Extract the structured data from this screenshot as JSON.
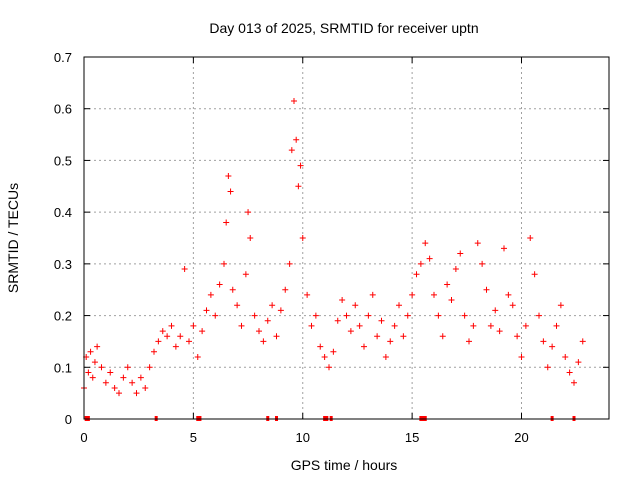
{
  "chart_data": {
    "type": "scatter",
    "title": "Day 013 of 2025, SRMTID for receiver uptn",
    "xlabel": "GPS time / hours",
    "ylabel": "SRMTID / TECUs",
    "xlim": [
      0,
      24
    ],
    "ylim": [
      0,
      0.7
    ],
    "xticks": [
      0,
      5,
      10,
      15,
      20
    ],
    "yticks": [
      0,
      0.1,
      0.2,
      0.3,
      0.4,
      0.5,
      0.6,
      0.7
    ],
    "grid": true,
    "marker": "+",
    "color": "#ff0000",
    "series": [
      {
        "name": "SRMTID",
        "points": [
          [
            0.0,
            0.06
          ],
          [
            0.1,
            0.12
          ],
          [
            0.2,
            0.09
          ],
          [
            0.3,
            0.13
          ],
          [
            0.4,
            0.08
          ],
          [
            0.5,
            0.11
          ],
          [
            0.6,
            0.14
          ],
          [
            0.8,
            0.1
          ],
          [
            1.0,
            0.07
          ],
          [
            1.2,
            0.09
          ],
          [
            1.4,
            0.06
          ],
          [
            1.6,
            0.05
          ],
          [
            1.8,
            0.08
          ],
          [
            2.0,
            0.1
          ],
          [
            2.2,
            0.07
          ],
          [
            2.4,
            0.05
          ],
          [
            2.6,
            0.08
          ],
          [
            2.8,
            0.06
          ],
          [
            3.0,
            0.1
          ],
          [
            3.2,
            0.13
          ],
          [
            3.4,
            0.15
          ],
          [
            3.6,
            0.17
          ],
          [
            3.8,
            0.16
          ],
          [
            4.0,
            0.18
          ],
          [
            4.2,
            0.14
          ],
          [
            4.4,
            0.16
          ],
          [
            4.6,
            0.29
          ],
          [
            4.8,
            0.15
          ],
          [
            5.0,
            0.18
          ],
          [
            5.2,
            0.12
          ],
          [
            5.4,
            0.17
          ],
          [
            5.6,
            0.21
          ],
          [
            5.8,
            0.24
          ],
          [
            6.0,
            0.2
          ],
          [
            6.2,
            0.26
          ],
          [
            6.4,
            0.3
          ],
          [
            6.5,
            0.38
          ],
          [
            6.6,
            0.47
          ],
          [
            6.7,
            0.44
          ],
          [
            6.8,
            0.25
          ],
          [
            7.0,
            0.22
          ],
          [
            7.2,
            0.18
          ],
          [
            7.4,
            0.28
          ],
          [
            7.5,
            0.4
          ],
          [
            7.6,
            0.35
          ],
          [
            7.8,
            0.2
          ],
          [
            8.0,
            0.17
          ],
          [
            8.2,
            0.15
          ],
          [
            8.4,
            0.19
          ],
          [
            8.6,
            0.22
          ],
          [
            8.8,
            0.16
          ],
          [
            9.0,
            0.21
          ],
          [
            9.2,
            0.25
          ],
          [
            9.4,
            0.3
          ],
          [
            9.5,
            0.52
          ],
          [
            9.6,
            0.615
          ],
          [
            9.7,
            0.54
          ],
          [
            9.8,
            0.45
          ],
          [
            9.9,
            0.49
          ],
          [
            10.0,
            0.35
          ],
          [
            10.2,
            0.24
          ],
          [
            10.4,
            0.18
          ],
          [
            10.6,
            0.2
          ],
          [
            10.8,
            0.14
          ],
          [
            11.0,
            0.12
          ],
          [
            11.2,
            0.1
          ],
          [
            11.4,
            0.13
          ],
          [
            11.6,
            0.19
          ],
          [
            11.8,
            0.23
          ],
          [
            12.0,
            0.2
          ],
          [
            12.2,
            0.17
          ],
          [
            12.4,
            0.22
          ],
          [
            12.6,
            0.18
          ],
          [
            12.8,
            0.14
          ],
          [
            13.0,
            0.2
          ],
          [
            13.2,
            0.24
          ],
          [
            13.4,
            0.16
          ],
          [
            13.6,
            0.19
          ],
          [
            13.8,
            0.12
          ],
          [
            14.0,
            0.15
          ],
          [
            14.2,
            0.18
          ],
          [
            14.4,
            0.22
          ],
          [
            14.6,
            0.16
          ],
          [
            14.8,
            0.2
          ],
          [
            15.0,
            0.24
          ],
          [
            15.2,
            0.28
          ],
          [
            15.4,
            0.3
          ],
          [
            15.6,
            0.34
          ],
          [
            15.8,
            0.31
          ],
          [
            16.0,
            0.24
          ],
          [
            16.2,
            0.2
          ],
          [
            16.4,
            0.16
          ],
          [
            16.6,
            0.26
          ],
          [
            16.8,
            0.23
          ],
          [
            17.0,
            0.29
          ],
          [
            17.2,
            0.32
          ],
          [
            17.4,
            0.2
          ],
          [
            17.6,
            0.15
          ],
          [
            17.8,
            0.18
          ],
          [
            18.0,
            0.34
          ],
          [
            18.2,
            0.3
          ],
          [
            18.4,
            0.25
          ],
          [
            18.6,
            0.18
          ],
          [
            18.8,
            0.21
          ],
          [
            19.0,
            0.17
          ],
          [
            19.2,
            0.33
          ],
          [
            19.4,
            0.24
          ],
          [
            19.6,
            0.22
          ],
          [
            19.8,
            0.16
          ],
          [
            20.0,
            0.12
          ],
          [
            20.2,
            0.18
          ],
          [
            20.4,
            0.35
          ],
          [
            20.6,
            0.28
          ],
          [
            20.8,
            0.2
          ],
          [
            21.0,
            0.15
          ],
          [
            21.2,
            0.1
          ],
          [
            21.4,
            0.14
          ],
          [
            21.6,
            0.18
          ],
          [
            21.8,
            0.22
          ],
          [
            22.0,
            0.12
          ],
          [
            22.2,
            0.09
          ],
          [
            22.4,
            0.07
          ],
          [
            22.6,
            0.11
          ],
          [
            22.8,
            0.15
          ]
        ]
      }
    ],
    "cycle_slip_markers_x": [
      0.1,
      0.2,
      3.3,
      5.2,
      5.3,
      8.4,
      8.8,
      11.0,
      11.1,
      11.3,
      15.4,
      15.5,
      15.6,
      21.4,
      22.4
    ]
  }
}
